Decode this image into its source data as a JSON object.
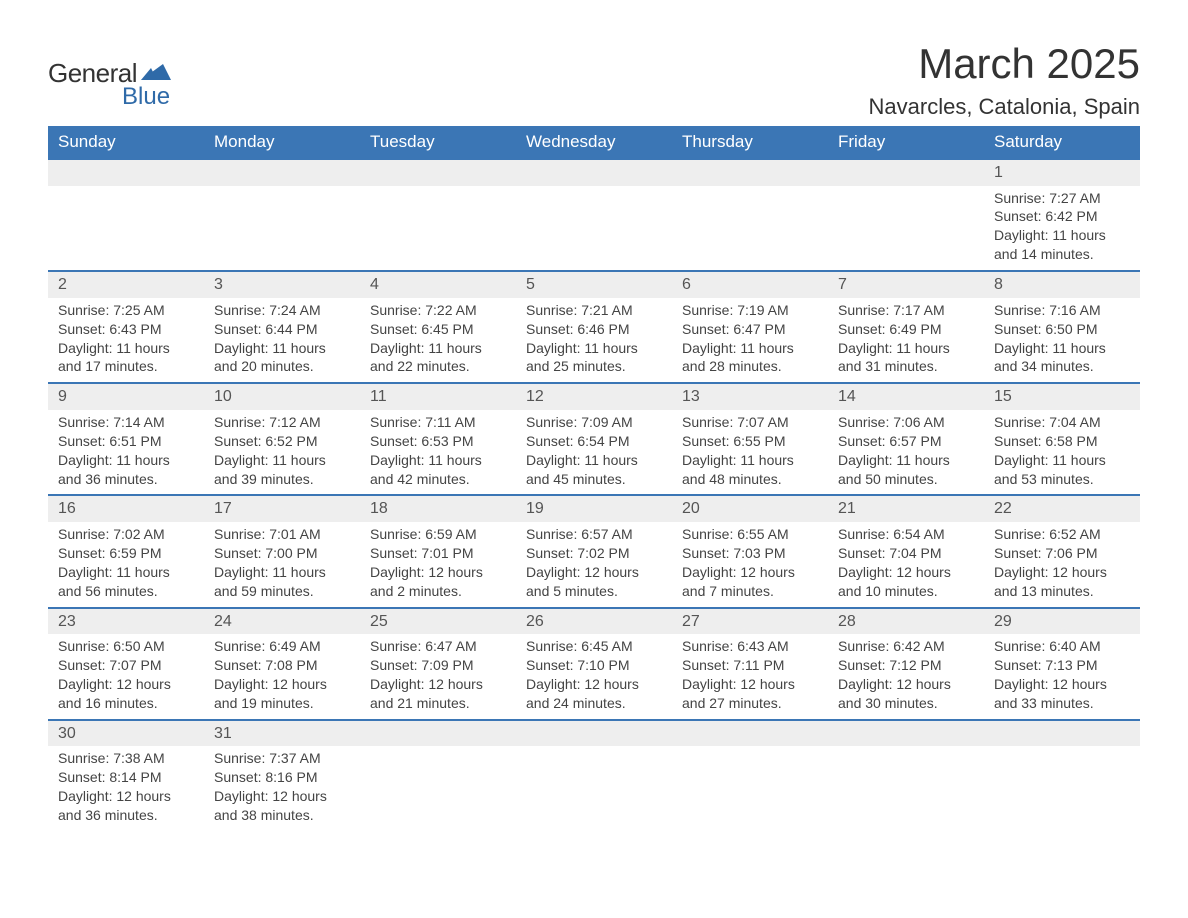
{
  "logo": {
    "text_general": "General",
    "text_blue": "Blue",
    "icon_color": "#2f6aa8"
  },
  "title": {
    "month": "March 2025",
    "location": "Navarcles, Catalonia, Spain",
    "title_fontsize": 42,
    "location_fontsize": 22,
    "text_color": "#333333"
  },
  "styling": {
    "header_bg": "#3b76b5",
    "header_fg": "#ffffff",
    "daynum_bg": "#eeeeee",
    "daynum_border": "#3b76b5",
    "body_text": "#444444",
    "font_family": "Arial"
  },
  "day_headers": [
    "Sunday",
    "Monday",
    "Tuesday",
    "Wednesday",
    "Thursday",
    "Friday",
    "Saturday"
  ],
  "weeks": [
    {
      "cells": [
        {
          "day": "",
          "lines": [
            "",
            "",
            "",
            ""
          ]
        },
        {
          "day": "",
          "lines": [
            "",
            "",
            "",
            ""
          ]
        },
        {
          "day": "",
          "lines": [
            "",
            "",
            "",
            ""
          ]
        },
        {
          "day": "",
          "lines": [
            "",
            "",
            "",
            ""
          ]
        },
        {
          "day": "",
          "lines": [
            "",
            "",
            "",
            ""
          ]
        },
        {
          "day": "",
          "lines": [
            "",
            "",
            "",
            ""
          ]
        },
        {
          "day": "1",
          "lines": [
            "Sunrise: 7:27 AM",
            "Sunset: 6:42 PM",
            "Daylight: 11 hours",
            "and 14 minutes."
          ]
        }
      ]
    },
    {
      "cells": [
        {
          "day": "2",
          "lines": [
            "Sunrise: 7:25 AM",
            "Sunset: 6:43 PM",
            "Daylight: 11 hours",
            "and 17 minutes."
          ]
        },
        {
          "day": "3",
          "lines": [
            "Sunrise: 7:24 AM",
            "Sunset: 6:44 PM",
            "Daylight: 11 hours",
            "and 20 minutes."
          ]
        },
        {
          "day": "4",
          "lines": [
            "Sunrise: 7:22 AM",
            "Sunset: 6:45 PM",
            "Daylight: 11 hours",
            "and 22 minutes."
          ]
        },
        {
          "day": "5",
          "lines": [
            "Sunrise: 7:21 AM",
            "Sunset: 6:46 PM",
            "Daylight: 11 hours",
            "and 25 minutes."
          ]
        },
        {
          "day": "6",
          "lines": [
            "Sunrise: 7:19 AM",
            "Sunset: 6:47 PM",
            "Daylight: 11 hours",
            "and 28 minutes."
          ]
        },
        {
          "day": "7",
          "lines": [
            "Sunrise: 7:17 AM",
            "Sunset: 6:49 PM",
            "Daylight: 11 hours",
            "and 31 minutes."
          ]
        },
        {
          "day": "8",
          "lines": [
            "Sunrise: 7:16 AM",
            "Sunset: 6:50 PM",
            "Daylight: 11 hours",
            "and 34 minutes."
          ]
        }
      ]
    },
    {
      "cells": [
        {
          "day": "9",
          "lines": [
            "Sunrise: 7:14 AM",
            "Sunset: 6:51 PM",
            "Daylight: 11 hours",
            "and 36 minutes."
          ]
        },
        {
          "day": "10",
          "lines": [
            "Sunrise: 7:12 AM",
            "Sunset: 6:52 PM",
            "Daylight: 11 hours",
            "and 39 minutes."
          ]
        },
        {
          "day": "11",
          "lines": [
            "Sunrise: 7:11 AM",
            "Sunset: 6:53 PM",
            "Daylight: 11 hours",
            "and 42 minutes."
          ]
        },
        {
          "day": "12",
          "lines": [
            "Sunrise: 7:09 AM",
            "Sunset: 6:54 PM",
            "Daylight: 11 hours",
            "and 45 minutes."
          ]
        },
        {
          "day": "13",
          "lines": [
            "Sunrise: 7:07 AM",
            "Sunset: 6:55 PM",
            "Daylight: 11 hours",
            "and 48 minutes."
          ]
        },
        {
          "day": "14",
          "lines": [
            "Sunrise: 7:06 AM",
            "Sunset: 6:57 PM",
            "Daylight: 11 hours",
            "and 50 minutes."
          ]
        },
        {
          "day": "15",
          "lines": [
            "Sunrise: 7:04 AM",
            "Sunset: 6:58 PM",
            "Daylight: 11 hours",
            "and 53 minutes."
          ]
        }
      ]
    },
    {
      "cells": [
        {
          "day": "16",
          "lines": [
            "Sunrise: 7:02 AM",
            "Sunset: 6:59 PM",
            "Daylight: 11 hours",
            "and 56 minutes."
          ]
        },
        {
          "day": "17",
          "lines": [
            "Sunrise: 7:01 AM",
            "Sunset: 7:00 PM",
            "Daylight: 11 hours",
            "and 59 minutes."
          ]
        },
        {
          "day": "18",
          "lines": [
            "Sunrise: 6:59 AM",
            "Sunset: 7:01 PM",
            "Daylight: 12 hours",
            "and 2 minutes."
          ]
        },
        {
          "day": "19",
          "lines": [
            "Sunrise: 6:57 AM",
            "Sunset: 7:02 PM",
            "Daylight: 12 hours",
            "and 5 minutes."
          ]
        },
        {
          "day": "20",
          "lines": [
            "Sunrise: 6:55 AM",
            "Sunset: 7:03 PM",
            "Daylight: 12 hours",
            "and 7 minutes."
          ]
        },
        {
          "day": "21",
          "lines": [
            "Sunrise: 6:54 AM",
            "Sunset: 7:04 PM",
            "Daylight: 12 hours",
            "and 10 minutes."
          ]
        },
        {
          "day": "22",
          "lines": [
            "Sunrise: 6:52 AM",
            "Sunset: 7:06 PM",
            "Daylight: 12 hours",
            "and 13 minutes."
          ]
        }
      ]
    },
    {
      "cells": [
        {
          "day": "23",
          "lines": [
            "Sunrise: 6:50 AM",
            "Sunset: 7:07 PM",
            "Daylight: 12 hours",
            "and 16 minutes."
          ]
        },
        {
          "day": "24",
          "lines": [
            "Sunrise: 6:49 AM",
            "Sunset: 7:08 PM",
            "Daylight: 12 hours",
            "and 19 minutes."
          ]
        },
        {
          "day": "25",
          "lines": [
            "Sunrise: 6:47 AM",
            "Sunset: 7:09 PM",
            "Daylight: 12 hours",
            "and 21 minutes."
          ]
        },
        {
          "day": "26",
          "lines": [
            "Sunrise: 6:45 AM",
            "Sunset: 7:10 PM",
            "Daylight: 12 hours",
            "and 24 minutes."
          ]
        },
        {
          "day": "27",
          "lines": [
            "Sunrise: 6:43 AM",
            "Sunset: 7:11 PM",
            "Daylight: 12 hours",
            "and 27 minutes."
          ]
        },
        {
          "day": "28",
          "lines": [
            "Sunrise: 6:42 AM",
            "Sunset: 7:12 PM",
            "Daylight: 12 hours",
            "and 30 minutes."
          ]
        },
        {
          "day": "29",
          "lines": [
            "Sunrise: 6:40 AM",
            "Sunset: 7:13 PM",
            "Daylight: 12 hours",
            "and 33 minutes."
          ]
        }
      ]
    },
    {
      "cells": [
        {
          "day": "30",
          "lines": [
            "Sunrise: 7:38 AM",
            "Sunset: 8:14 PM",
            "Daylight: 12 hours",
            "and 36 minutes."
          ]
        },
        {
          "day": "31",
          "lines": [
            "Sunrise: 7:37 AM",
            "Sunset: 8:16 PM",
            "Daylight: 12 hours",
            "and 38 minutes."
          ]
        },
        {
          "day": "",
          "lines": [
            "",
            "",
            "",
            ""
          ]
        },
        {
          "day": "",
          "lines": [
            "",
            "",
            "",
            ""
          ]
        },
        {
          "day": "",
          "lines": [
            "",
            "",
            "",
            ""
          ]
        },
        {
          "day": "",
          "lines": [
            "",
            "",
            "",
            ""
          ]
        },
        {
          "day": "",
          "lines": [
            "",
            "",
            "",
            ""
          ]
        }
      ]
    }
  ]
}
